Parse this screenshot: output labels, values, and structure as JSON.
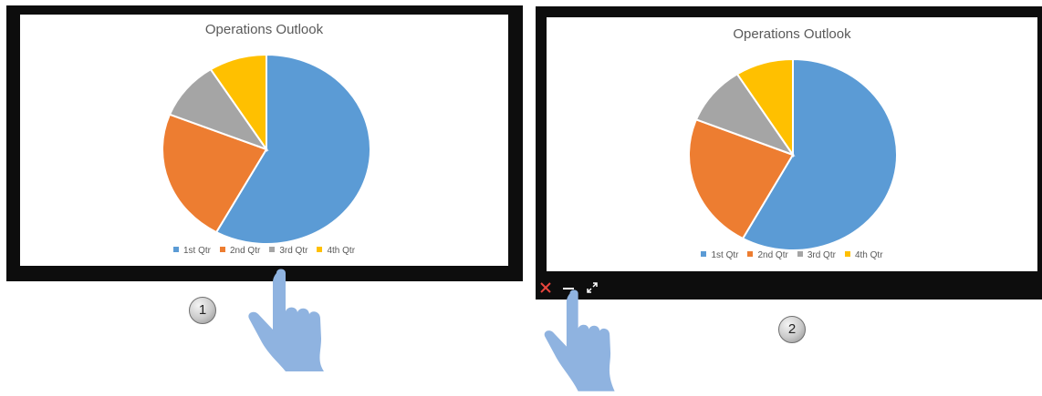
{
  "colors": {
    "q1": "#5b9bd5",
    "q2": "#ed7d31",
    "q3": "#a5a5a5",
    "q4": "#ffc000",
    "hand": "#8fb3e0",
    "close": "#e8453c"
  },
  "panels": [
    {
      "step": "1",
      "chart_title": "Operations Outlook"
    },
    {
      "step": "2",
      "chart_title": "Operations Outlook",
      "toolbar": {
        "close_icon": "close-icon",
        "minimize_icon": "minimize-icon",
        "expand_icon": "expand-icon"
      }
    }
  ],
  "chart_data": [
    {
      "type": "pie",
      "title": "Operations Outlook",
      "categories": [
        "1st Qtr",
        "2nd Qtr",
        "3rd Qtr",
        "4th Qtr"
      ],
      "values": [
        58,
        23,
        10,
        9
      ],
      "legend": "bottom"
    },
    {
      "type": "pie",
      "title": "Operations Outlook",
      "categories": [
        "1st Qtr",
        "2nd Qtr",
        "3rd Qtr",
        "4th Qtr"
      ],
      "values": [
        58,
        23,
        10,
        9
      ],
      "legend": "bottom"
    }
  ]
}
